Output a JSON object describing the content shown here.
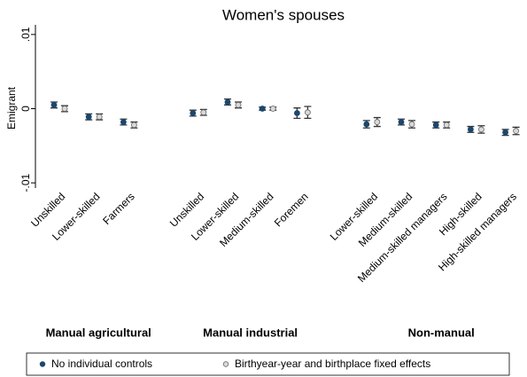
{
  "chart_data": {
    "type": "dot-errorbar",
    "title": "Women's spouses",
    "y_label": "Emigrant",
    "categories": [
      "Unskilled",
      "Lower-skilled",
      "Farmers",
      null,
      "Unskilled",
      "Lower-skilled",
      "Medium-skilled",
      "Foremen",
      null,
      "Lower-skilled",
      "Medium-skilled",
      "Medium-skilled managers",
      "High-skilled",
      "High-skilled managers"
    ],
    "groups": [
      "Manual agricultural",
      "Manual industrial",
      "Non-manual"
    ],
    "series": [
      {
        "name": "No individual controls",
        "color": "#1a476f",
        "values": [
          0.0005,
          -0.0011,
          -0.0018,
          null,
          -0.0006,
          0.0009,
          0.0,
          -0.0006,
          null,
          -0.0021,
          -0.0018,
          -0.0022,
          -0.0028,
          -0.0032
        ],
        "errors": [
          0.0004,
          0.0004,
          0.0004,
          null,
          0.0004,
          0.0004,
          0.0002,
          0.0007,
          null,
          0.0005,
          0.0004,
          0.0004,
          0.0004,
          0.0004
        ]
      },
      {
        "name": "Birthyear-year and birthplace fixed effects",
        "color": "#d9d9d9",
        "values": [
          0.0,
          -0.0011,
          -0.0022,
          null,
          -0.0005,
          0.0005,
          0.0,
          -0.0005,
          null,
          -0.0018,
          -0.0021,
          -0.0022,
          -0.0028,
          -0.003
        ],
        "errors": [
          0.0004,
          0.0004,
          0.0004,
          null,
          0.0004,
          0.0004,
          0.0002,
          0.0008,
          null,
          0.0006,
          0.0005,
          0.0004,
          0.0005,
          0.0005
        ]
      }
    ],
    "ylim": [
      -0.0107,
      0.0113
    ],
    "yticks": [
      {
        "value": -0.01,
        "label": "-.01"
      },
      {
        "value": 0,
        "label": "0"
      },
      {
        "value": 0.01,
        "label": ".01"
      }
    ],
    "grid": false
  }
}
